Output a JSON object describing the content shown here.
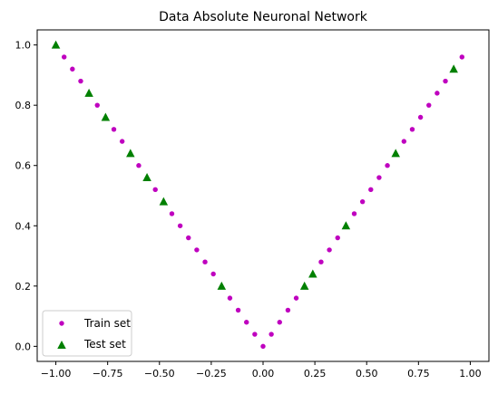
{
  "chart_data": {
    "type": "scatter",
    "title": "Data Absolute Neuronal Network",
    "xlabel": "",
    "ylabel": "",
    "xlim": [
      -1.09,
      1.09
    ],
    "ylim": [
      -0.05,
      1.05
    ],
    "xticks": [
      -1.0,
      -0.75,
      -0.5,
      -0.25,
      0.0,
      0.25,
      0.5,
      0.75,
      1.0
    ],
    "xtick_labels": [
      "−1.00",
      "−0.75",
      "−0.50",
      "−0.25",
      "0.00",
      "0.25",
      "0.50",
      "0.75",
      "1.00"
    ],
    "yticks": [
      0.0,
      0.2,
      0.4,
      0.6,
      0.8,
      1.0
    ],
    "ytick_labels": [
      "0.0",
      "0.2",
      "0.4",
      "0.6",
      "0.8",
      "1.0"
    ],
    "grid": false,
    "legend_position": "lower-left",
    "series": [
      {
        "name": "Train set",
        "marker": "circle",
        "color": "#bf00bf",
        "x": [
          -0.96,
          -0.92,
          -0.88,
          -0.8,
          -0.72,
          -0.68,
          -0.6,
          -0.52,
          -0.44,
          -0.4,
          -0.36,
          -0.32,
          -0.28,
          -0.24,
          -0.16,
          -0.12,
          -0.08,
          -0.04,
          0.0,
          0.04,
          0.08,
          0.12,
          0.16,
          0.28,
          0.32,
          0.36,
          0.44,
          0.48,
          0.52,
          0.56,
          0.6,
          0.68,
          0.72,
          0.76,
          0.8,
          0.84,
          0.88,
          0.96
        ],
        "y": [
          0.96,
          0.92,
          0.88,
          0.8,
          0.72,
          0.68,
          0.6,
          0.52,
          0.44,
          0.4,
          0.36,
          0.32,
          0.28,
          0.24,
          0.16,
          0.12,
          0.08,
          0.04,
          0.0,
          0.04,
          0.08,
          0.12,
          0.16,
          0.28,
          0.32,
          0.36,
          0.44,
          0.48,
          0.52,
          0.56,
          0.6,
          0.68,
          0.72,
          0.76,
          0.8,
          0.84,
          0.88,
          0.96
        ]
      },
      {
        "name": "Test set",
        "marker": "triangle",
        "color": "#008000",
        "x": [
          -1.0,
          -0.84,
          -0.76,
          -0.64,
          -0.56,
          -0.48,
          -0.2,
          0.2,
          0.24,
          0.4,
          0.64,
          0.92
        ],
        "y": [
          1.0,
          0.84,
          0.76,
          0.64,
          0.56,
          0.48,
          0.2,
          0.2,
          0.24,
          0.4,
          0.64,
          0.92
        ]
      }
    ]
  }
}
